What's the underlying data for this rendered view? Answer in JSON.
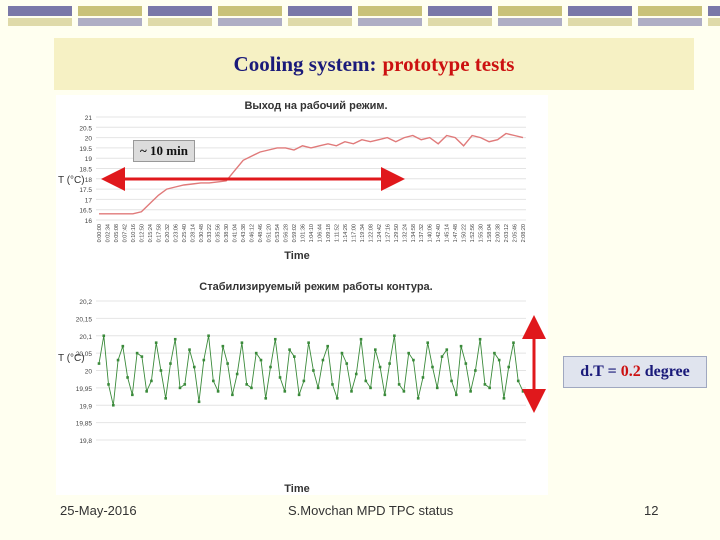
{
  "slide": {
    "title_main": "Cooling system:",
    "title_accent": "prototype tests",
    "annotation_time": "~  10 min",
    "dt_label": "d.T =",
    "dt_value": "0.2",
    "dt_unit": "degree",
    "footer_date": "25-May-2016",
    "footer_center": "S.Movchan  MPD TPC status",
    "page_number": "12"
  },
  "colors": {
    "title": "#1a1a7a",
    "accent": "#cc1111",
    "series": "#3a8a3a",
    "arrow": "#e0181c"
  },
  "chart_data": [
    {
      "type": "line",
      "title": "Выход на рабочий режим.",
      "xlabel": "Time",
      "ylabel": "T (°C)",
      "ylim": [
        16,
        21
      ],
      "yticks": [
        "21",
        "20.5",
        "20",
        "19.5",
        "19",
        "18.5",
        "18",
        "17.5",
        "17",
        "16.5",
        "16"
      ],
      "x": [
        "0:00:00",
        "0:02:34",
        "0:05:08",
        "0:07:42",
        "0:10:16",
        "0:12:50",
        "0:15:24",
        "0:17:58",
        "0:20:32",
        "0:23:06",
        "0:25:40",
        "0:28:14",
        "0:30:48",
        "0:33:22",
        "0:35:56",
        "0:38:30",
        "0:41:04",
        "0:43:38",
        "0:46:12",
        "0:48:46",
        "0:51:20",
        "0:53:54",
        "0:56:28",
        "0:59:02",
        "1:01:36",
        "1:04:10",
        "1:06:44",
        "1:09:18",
        "1:11:52",
        "1:14:26",
        "1:17:00",
        "1:19:34",
        "1:22:08",
        "1:24:42",
        "1:27:16",
        "1:29:50",
        "1:32:24",
        "1:34:58",
        "1:37:32",
        "1:40:06",
        "1:42:40",
        "1:45:14",
        "1:47:48",
        "1:50:22",
        "1:52:56",
        "1:55:30",
        "1:58:04",
        "2:00:38",
        "2:03:12",
        "2:05:46",
        "2:08:20"
      ],
      "values": [
        16.3,
        16.3,
        16.3,
        16.3,
        16.3,
        16.4,
        16.8,
        17.2,
        17.5,
        17.6,
        17.7,
        17.75,
        17.8,
        17.8,
        17.85,
        17.9,
        18.4,
        18.9,
        19.1,
        19.3,
        19.4,
        19.5,
        19.5,
        19.4,
        19.6,
        19.5,
        19.6,
        19.7,
        19.6,
        19.8,
        19.7,
        19.9,
        19.8,
        19.9,
        20.0,
        19.8,
        20.0,
        20.1,
        19.9,
        20.0,
        19.7,
        20.1,
        20.0,
        19.6,
        20.1,
        20.0,
        19.8,
        19.9,
        20.2,
        20.1,
        20.0
      ]
    },
    {
      "type": "line",
      "title": "Стабилизируемый режим работы контура.",
      "xlabel": "Time",
      "ylabel": "T (°C)",
      "ylim": [
        19.8,
        20.2
      ],
      "yticks": [
        "20,2",
        "20,15",
        "20,1",
        "20,05",
        "20",
        "19,95",
        "19,9",
        "19,85",
        "19,8"
      ],
      "values": [
        20.02,
        20.1,
        19.96,
        19.9,
        20.03,
        20.07,
        19.98,
        19.93,
        20.05,
        20.04,
        19.94,
        19.97,
        20.08,
        20.0,
        19.92,
        20.02,
        20.09,
        19.95,
        19.96,
        20.06,
        20.01,
        19.91,
        20.03,
        20.1,
        19.97,
        19.94,
        20.07,
        20.02,
        19.93,
        19.99,
        20.08,
        19.96,
        19.95,
        20.05,
        20.03,
        19.92,
        20.01,
        20.09,
        19.98,
        19.94,
        20.06,
        20.04,
        19.93,
        19.97,
        20.08,
        20.0,
        19.95,
        20.03,
        20.07,
        19.96,
        19.92,
        20.05,
        20.02,
        19.94,
        19.99,
        20.09,
        19.97,
        19.95,
        20.06,
        20.01,
        19.93,
        20.02,
        20.1,
        19.96,
        19.94,
        20.05,
        20.03,
        19.92,
        19.98,
        20.08,
        20.01,
        19.95,
        20.04,
        20.06,
        19.97,
        19.93,
        20.07,
        20.02,
        19.94,
        20.0,
        20.09,
        19.96,
        19.95,
        20.05,
        20.03,
        19.92,
        20.01,
        20.08,
        19.97,
        19.94
      ]
    }
  ]
}
